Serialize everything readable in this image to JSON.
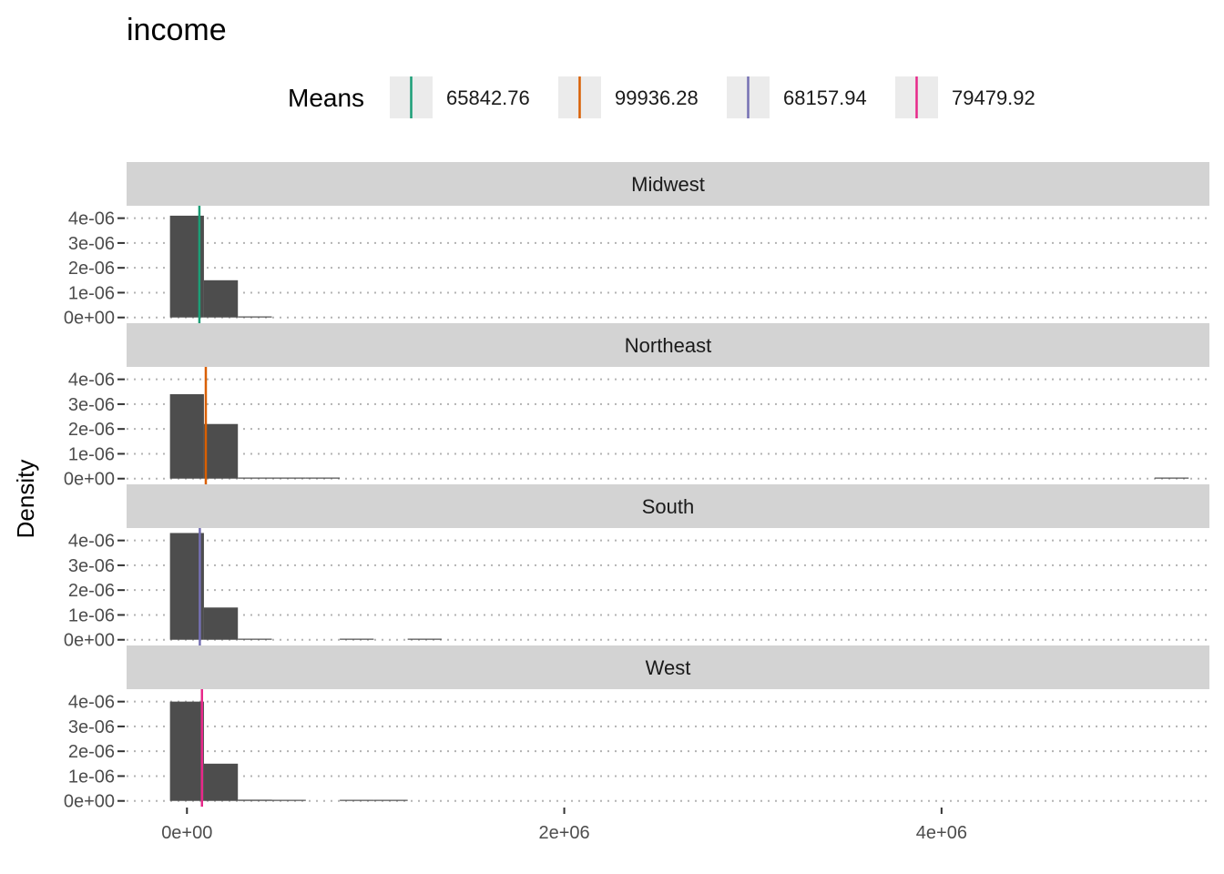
{
  "chart_data": {
    "type": "histogram",
    "title": "income",
    "xlabel": "",
    "ylabel": "Density",
    "xlim": [
      -320000,
      5420000
    ],
    "ylim": [
      -2.3e-07,
      4.5e-06
    ],
    "x_tick_values": [
      0,
      2000000,
      4000000
    ],
    "x_tick_labels": [
      "0e+00",
      "2e+06",
      "4e+06"
    ],
    "y_tick_values": [
      0,
      1e-06,
      2e-06,
      3e-06,
      4e-06
    ],
    "y_tick_labels": [
      "0e+00",
      "1e-06",
      "2e-06",
      "3e-06",
      "4e-06"
    ],
    "grid": "dotted",
    "bin_width": 180000,
    "legend": {
      "title": "Means",
      "position": "top",
      "entries": [
        {
          "label": "65842.76",
          "color": "#1B9E77"
        },
        {
          "label": "99936.28",
          "color": "#D95F02"
        },
        {
          "label": "68157.94",
          "color": "#7570B3"
        },
        {
          "label": "79479.92",
          "color": "#E7298A"
        }
      ]
    },
    "panels": [
      {
        "name": "Midwest",
        "mean": 65842.76,
        "mean_color": "#1B9E77",
        "bars": [
          {
            "x0": -90000,
            "x1": 90000,
            "density": 4.1e-06
          },
          {
            "x0": 90000,
            "x1": 270000,
            "density": 1.5e-06
          },
          {
            "x0": 270000,
            "x1": 450000,
            "density": 3e-08
          }
        ]
      },
      {
        "name": "Northeast",
        "mean": 99936.28,
        "mean_color": "#D95F02",
        "bars": [
          {
            "x0": -90000,
            "x1": 90000,
            "density": 3.4e-06
          },
          {
            "x0": 90000,
            "x1": 270000,
            "density": 2.2e-06
          },
          {
            "x0": 270000,
            "x1": 450000,
            "density": 3e-08
          },
          {
            "x0": 450000,
            "x1": 630000,
            "density": 2e-08
          },
          {
            "x0": 630000,
            "x1": 810000,
            "density": 2e-08
          },
          {
            "x0": 5130000,
            "x1": 5310000,
            "density": 2e-08
          }
        ]
      },
      {
        "name": "South",
        "mean": 68157.94,
        "mean_color": "#7570B3",
        "bars": [
          {
            "x0": -90000,
            "x1": 90000,
            "density": 4.3e-06
          },
          {
            "x0": 90000,
            "x1": 270000,
            "density": 1.3e-06
          },
          {
            "x0": 270000,
            "x1": 450000,
            "density": 3e-08
          },
          {
            "x0": 810000,
            "x1": 990000,
            "density": 2e-08
          },
          {
            "x0": 1170000,
            "x1": 1350000,
            "density": 2e-08
          }
        ]
      },
      {
        "name": "West",
        "mean": 79479.92,
        "mean_color": "#E7298A",
        "bars": [
          {
            "x0": -90000,
            "x1": 90000,
            "density": 4e-06
          },
          {
            "x0": 90000,
            "x1": 270000,
            "density": 1.5e-06
          },
          {
            "x0": 270000,
            "x1": 450000,
            "density": 5e-08
          },
          {
            "x0": 450000,
            "x1": 630000,
            "density": 2e-08
          },
          {
            "x0": 810000,
            "x1": 990000,
            "density": 2e-08
          },
          {
            "x0": 990000,
            "x1": 1170000,
            "density": 2e-08
          }
        ]
      }
    ],
    "colors": {
      "bar_fill": "#4D4D4D",
      "strip_fill": "#D3D3D3",
      "grid": "#B3B3B3",
      "legend_key_bg": "#EBEBEB"
    }
  }
}
